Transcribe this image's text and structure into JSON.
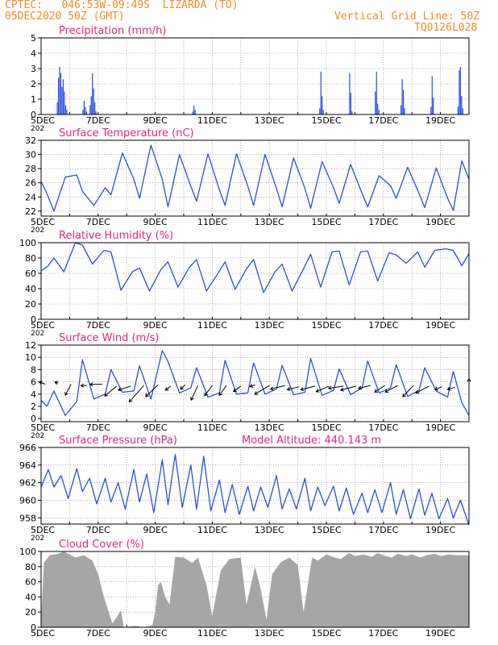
{
  "header": {
    "line1": "CPTEC:   046:53W-09:49S  LIZARDA (TO)",
    "line2": "05DEC2020 50Z (GMT)",
    "right1": "Vertical Grid Line: 50Z",
    "right2": "TQ0126L028"
  },
  "x_axis": {
    "ticks": [
      "5DEC",
      "7DEC",
      "9DEC",
      "11DEC",
      "13DEC",
      "15DEC",
      "17DEC",
      "19DEC"
    ],
    "year_fragment": "202"
  },
  "colors": {
    "line": "#2b4ee0",
    "title": "#e0287e",
    "header": "#f08c28",
    "cloud": "#a6a6a6",
    "grid": "#808080"
  },
  "chart_data": [
    {
      "type": "bar",
      "title": "Precipitation (mm/h)",
      "ylim": [
        0,
        5
      ],
      "yticks": [
        0,
        1,
        2,
        3,
        4,
        5
      ],
      "events": [
        {
          "day": 5.55,
          "values": [
            0.8,
            2.4,
            3.1,
            2.7,
            1.8,
            2.3,
            1.5,
            0.6,
            0.3
          ]
        },
        {
          "day": 6.45,
          "values": [
            0.3,
            0.9,
            0.5,
            0.2
          ]
        },
        {
          "day": 6.7,
          "values": [
            0.6,
            1.2,
            2.7,
            1.7,
            0.8,
            0.2
          ]
        },
        {
          "day": 10.3,
          "values": [
            0.2,
            0.6,
            0.3
          ]
        },
        {
          "day": 14.75,
          "values": [
            0.4,
            2.8,
            1.2,
            0.3
          ]
        },
        {
          "day": 15.8,
          "values": [
            2.7,
            1.4,
            0.2
          ]
        },
        {
          "day": 16.7,
          "values": [
            1.5,
            2.8,
            0.7,
            0.3
          ]
        },
        {
          "day": 17.6,
          "values": [
            0.6,
            2.3,
            1.6,
            0.4
          ]
        },
        {
          "day": 18.65,
          "values": [
            0.5,
            2.5,
            1.1
          ]
        },
        {
          "day": 19.6,
          "values": [
            0.5,
            2.9,
            3.1,
            1.2,
            0.4
          ]
        }
      ]
    },
    {
      "type": "line",
      "title": "Surface Temperature (nC)",
      "ylim": [
        21.3,
        32
      ],
      "yticks": [
        22,
        24,
        26,
        28,
        30,
        32
      ],
      "x": [
        5.0,
        5.2,
        5.45,
        5.85,
        6.25,
        6.45,
        6.85,
        7.25,
        7.45,
        7.85,
        8.25,
        8.45,
        8.85,
        9.25,
        9.45,
        9.85,
        10.25,
        10.45,
        10.85,
        11.25,
        11.45,
        11.85,
        12.25,
        12.45,
        12.85,
        13.25,
        13.45,
        13.85,
        14.25,
        14.45,
        14.85,
        15.25,
        15.45,
        15.85,
        16.25,
        16.45,
        16.85,
        17.25,
        17.45,
        17.85,
        18.25,
        18.45,
        18.85,
        19.25,
        19.45,
        19.75,
        20.0
      ],
      "y": [
        26.2,
        24.5,
        22.0,
        26.8,
        27.1,
        24.8,
        22.8,
        25.3,
        24.3,
        30.2,
        26.5,
        23.8,
        31.3,
        26.5,
        22.6,
        30.0,
        25.5,
        23.4,
        30.1,
        25.0,
        22.8,
        30.1,
        25.5,
        22.8,
        30.0,
        25.2,
        22.6,
        29.5,
        25.2,
        22.4,
        29.0,
        25.3,
        23.1,
        28.6,
        24.5,
        22.6,
        27.0,
        25.6,
        23.8,
        28.2,
        24.5,
        22.5,
        28.1,
        23.8,
        22.1,
        29.1,
        26.5
      ]
    },
    {
      "type": "line",
      "title": "Relative Humidity (%)",
      "ylim": [
        0,
        100
      ],
      "yticks": [
        0,
        20,
        40,
        60,
        80,
        100
      ],
      "x": [
        5.0,
        5.25,
        5.45,
        5.8,
        6.2,
        6.45,
        6.8,
        7.2,
        7.45,
        7.8,
        8.2,
        8.45,
        8.8,
        9.2,
        9.45,
        9.8,
        10.2,
        10.45,
        10.8,
        11.2,
        11.45,
        11.8,
        12.2,
        12.45,
        12.8,
        13.2,
        13.45,
        13.8,
        14.2,
        14.45,
        14.8,
        15.2,
        15.45,
        15.8,
        16.2,
        16.45,
        16.8,
        17.2,
        17.45,
        17.8,
        18.2,
        18.45,
        18.8,
        19.2,
        19.45,
        19.75,
        20.0
      ],
      "y": [
        63,
        70,
        80,
        62,
        100,
        97,
        72,
        90,
        88,
        38,
        62,
        67,
        37,
        65,
        75,
        42,
        68,
        78,
        37,
        60,
        75,
        39,
        66,
        78,
        35,
        62,
        72,
        37,
        66,
        85,
        42,
        88,
        89,
        45,
        88,
        89,
        50,
        87,
        84,
        73,
        88,
        68,
        90,
        92,
        90,
        70,
        86
      ]
    },
    {
      "type": "line",
      "title": "Surface Wind (m/s)",
      "ylim": [
        -0.5,
        12
      ],
      "yticks": [
        0,
        2,
        4,
        6,
        8,
        10,
        12
      ],
      "x": [
        5.0,
        5.2,
        5.45,
        5.85,
        6.25,
        6.45,
        6.85,
        7.25,
        7.45,
        7.85,
        8.25,
        8.45,
        8.85,
        9.25,
        9.45,
        9.85,
        10.25,
        10.45,
        10.85,
        11.25,
        11.45,
        11.85,
        12.25,
        12.45,
        12.85,
        13.25,
        13.45,
        13.85,
        14.25,
        14.45,
        14.85,
        15.25,
        15.45,
        15.85,
        16.25,
        16.45,
        16.85,
        17.25,
        17.45,
        17.85,
        18.25,
        18.45,
        18.85,
        19.25,
        19.45,
        19.75,
        20.0
      ],
      "y": [
        3,
        2,
        4.5,
        0.5,
        2.8,
        9.6,
        3.2,
        4.0,
        8.0,
        4.3,
        4.5,
        8.6,
        3.2,
        11.1,
        9.3,
        4.2,
        5.0,
        8.3,
        3.5,
        4.2,
        9.5,
        4.0,
        4.2,
        9.1,
        4.0,
        4.8,
        8.7,
        3.9,
        4.3,
        9.8,
        3.8,
        4.6,
        8.1,
        3.9,
        5.0,
        9.4,
        4.2,
        5.0,
        8.8,
        3.6,
        4.6,
        8.3,
        4.5,
        3.5,
        7.7,
        2.6,
        0.5
      ]
    },
    {
      "type": "line",
      "title": "Surface Pressure (hPa)",
      "annotation": "Model Altitude: 440.143 m",
      "ylim": [
        957.3,
        966
      ],
      "yticks": [
        958,
        960,
        962,
        964,
        966
      ],
      "x": [
        5.0,
        5.25,
        5.45,
        5.7,
        5.95,
        6.25,
        6.45,
        6.7,
        6.95,
        7.25,
        7.45,
        7.7,
        7.95,
        8.25,
        8.45,
        8.7,
        8.95,
        9.25,
        9.45,
        9.7,
        9.95,
        10.25,
        10.45,
        10.7,
        10.95,
        11.25,
        11.45,
        11.7,
        11.95,
        12.25,
        12.45,
        12.7,
        12.95,
        13.25,
        13.45,
        13.7,
        13.95,
        14.25,
        14.45,
        14.7,
        14.95,
        15.25,
        15.45,
        15.7,
        15.95,
        16.25,
        16.45,
        16.7,
        16.95,
        17.25,
        17.45,
        17.7,
        17.95,
        18.25,
        18.45,
        18.7,
        18.95,
        19.25,
        19.45,
        19.7,
        20.0
      ],
      "y": [
        961.5,
        963.5,
        961.5,
        962.8,
        960.2,
        963.6,
        961.0,
        962.5,
        959.6,
        962.5,
        959.8,
        962.0,
        959.0,
        963.5,
        959.8,
        963.0,
        958.6,
        964.6,
        959.5,
        965.2,
        959.2,
        964.0,
        959.0,
        965.0,
        958.8,
        962.3,
        958.6,
        961.8,
        958.4,
        961.6,
        958.8,
        961.5,
        959.2,
        962.8,
        959.0,
        961.3,
        959.0,
        962.5,
        958.8,
        961.5,
        959.4,
        961.6,
        958.8,
        961.4,
        958.4,
        960.8,
        958.6,
        961.2,
        958.6,
        962.0,
        958.4,
        961.2,
        957.9,
        961.3,
        958.3,
        960.8,
        957.9,
        960.2,
        958.0,
        960.0,
        957.2
      ]
    },
    {
      "type": "area",
      "title": "Cloud Cover (%)",
      "ylim": [
        0,
        100
      ],
      "yticks": [
        0,
        20,
        40,
        60,
        80,
        100
      ],
      "x": [
        5.0,
        5.1,
        5.3,
        5.6,
        5.8,
        6.2,
        6.5,
        6.8,
        7.0,
        7.2,
        7.5,
        7.8,
        7.9,
        8.3,
        8.6,
        8.9,
        9.0,
        9.1,
        9.2,
        9.35,
        9.5,
        9.7,
        10.0,
        10.3,
        10.5,
        10.8,
        11.0,
        11.3,
        11.6,
        12.0,
        12.2,
        12.5,
        12.7,
        12.9,
        13.1,
        13.4,
        13.7,
        14.0,
        14.2,
        14.5,
        14.7,
        15.0,
        15.3,
        15.5,
        15.8,
        16.0,
        16.3,
        16.6,
        16.8,
        17.0,
        17.3,
        17.5,
        17.8,
        18.0,
        18.3,
        18.5,
        18.8,
        19.0,
        19.3,
        19.6,
        20.0
      ],
      "y": [
        10,
        85,
        95,
        97,
        100,
        92,
        95,
        88,
        70,
        40,
        5,
        22,
        0,
        2,
        0,
        3,
        20,
        55,
        60,
        40,
        30,
        93,
        92,
        85,
        92,
        55,
        15,
        75,
        90,
        92,
        30,
        80,
        50,
        10,
        70,
        86,
        92,
        82,
        20,
        92,
        88,
        96,
        92,
        90,
        98,
        94,
        96,
        93,
        98,
        95,
        92,
        97,
        94,
        96,
        92,
        95,
        97,
        94,
        96,
        95,
        95
      ]
    }
  ],
  "wind_vectors": {
    "speed_ref": 5,
    "x": [
      5.15,
      5.6,
      6.05,
      6.6,
      7.15,
      7.65,
      8.15,
      8.6,
      9.1,
      9.55,
      10.05,
      10.5,
      11.0,
      11.5,
      12.0,
      12.5,
      13.0,
      13.55,
      14.05,
      14.6,
      15.1,
      15.6,
      16.05,
      16.55,
      17.05,
      17.5,
      18.05,
      18.6,
      19.05,
      19.5,
      20.0
    ],
    "base": [
      5.6,
      5.8,
      5.6,
      5.4,
      5.6,
      5.3,
      5.3,
      5.4,
      5.5,
      5.3,
      5.5,
      5.4,
      5.4,
      5.4,
      5.3,
      5.5,
      5.4,
      5.4,
      5.2,
      5.3,
      5.3,
      5.3,
      5.3,
      5.4,
      5.4,
      5.4,
      5.4,
      5.3,
      5.2,
      5.1,
      5.6
    ],
    "u": [
      -1.7,
      -0.9,
      -1.6,
      -1.6,
      -3.4,
      -3.3,
      -3.5,
      -4.0,
      -3.4,
      -1.5,
      -1.3,
      -1.9,
      -2.1,
      -2.0,
      -2.0,
      -1.4,
      -4.0,
      -4.0,
      -3.3,
      -3.9,
      -3.6,
      -4.1,
      -4.3,
      -3.3,
      -2.8,
      -3.4,
      -2.9,
      -3.6,
      -1.9,
      -2.0,
      0
    ],
    "v": [
      0.7,
      0.3,
      -3.0,
      0.0,
      0.0,
      -2.7,
      -1.1,
      -4.5,
      -3.2,
      -1.1,
      -1.2,
      -4.0,
      -2.8,
      -2.7,
      -1.5,
      -0.5,
      -2.4,
      -1.0,
      -0.8,
      -1.0,
      -1.5,
      -0.6,
      -1.1,
      -0.8,
      -1.8,
      -1.8,
      -3.1,
      -1.9,
      -0.8,
      -0.6,
      1.5
    ]
  }
}
